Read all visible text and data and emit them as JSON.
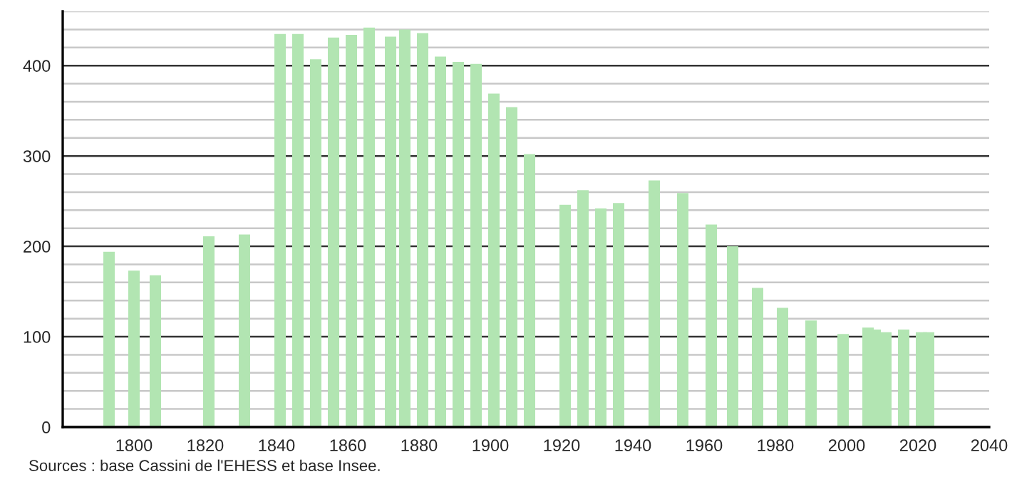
{
  "chart_data": {
    "type": "bar",
    "x": [
      1793,
      1800,
      1806,
      1821,
      1831,
      1841,
      1846,
      1851,
      1856,
      1861,
      1866,
      1872,
      1876,
      1881,
      1886,
      1891,
      1896,
      1901,
      1906,
      1911,
      1921,
      1926,
      1931,
      1936,
      1946,
      1954,
      1962,
      1968,
      1975,
      1982,
      1990,
      1999,
      2006,
      2008,
      2011,
      2016,
      2021,
      2023
    ],
    "values": [
      194,
      173,
      168,
      211,
      213,
      435,
      435,
      407,
      431,
      434,
      442,
      432,
      440,
      436,
      410,
      404,
      402,
      369,
      354,
      302,
      246,
      262,
      242,
      248,
      273,
      259,
      224,
      200,
      154,
      132,
      118,
      103,
      110,
      108,
      105,
      108,
      105,
      105
    ],
    "color": "#b2e5b2",
    "xlim": [
      1780,
      2040
    ],
    "xticks": [
      1800,
      1820,
      1840,
      1860,
      1880,
      1900,
      1920,
      1940,
      1960,
      1980,
      2000,
      2020,
      2040
    ],
    "ylim": [
      0,
      460
    ],
    "yticks": [
      0,
      {
        "value": 20,
        "label": null
      },
      {
        "value": 40,
        "label": null
      },
      {
        "value": 60,
        "label": null
      },
      {
        "value": 80,
        "label": null
      },
      100,
      {
        "value": 120,
        "label": null
      },
      {
        "value": 140,
        "label": null
      },
      {
        "value": 160,
        "label": null
      },
      {
        "value": 180,
        "label": null
      },
      200,
      {
        "value": 220,
        "label": null
      },
      {
        "value": 240,
        "label": null
      },
      {
        "value": 260,
        "label": null
      },
      {
        "value": 280,
        "label": null
      },
      300,
      {
        "value": 320,
        "label": null
      },
      {
        "value": 340,
        "label": null
      },
      {
        "value": 360,
        "label": null
      },
      {
        "value": 380,
        "label": null
      },
      400,
      {
        "value": 420,
        "label": null
      },
      {
        "value": 440,
        "label": null
      },
      {
        "value": 460,
        "label": null
      }
    ],
    "grid": "y",
    "annotations": [
      "Sources : base Cassini de l'EHESS et base Insee."
    ]
  }
}
